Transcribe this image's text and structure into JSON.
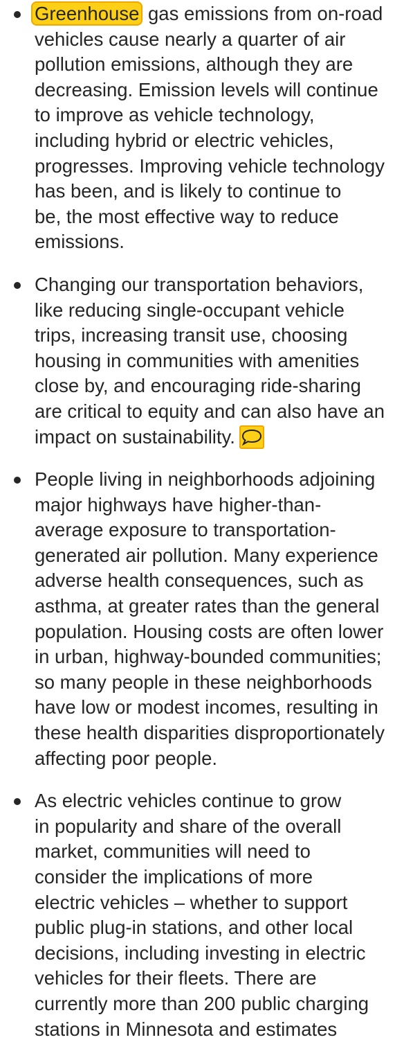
{
  "bullets": [
    {
      "highlight": "Greenhouse",
      "lines": [
        " gas emissions from on-road",
        "vehicles cause nearly a quarter of air",
        "pollution emissions, although they are",
        "decreasing. Emission levels will continue",
        "to improve as vehicle technology,",
        "including hybrid or electric vehicles,",
        "progresses. Improving vehicle technology",
        "has been, and is likely to continue to",
        "be, the most effective way to reduce",
        "emissions."
      ]
    },
    {
      "lines": [
        "Changing our transportation behaviors,",
        "like reducing single-occupant vehicle",
        "trips, increasing transit use, choosing",
        "housing in communities with amenities",
        "close by, and encouraging ride-sharing",
        "are critical to equity and can also have an",
        "impact on sustainability."
      ]
    },
    {
      "lines": [
        "People living in neighborhoods adjoining",
        "major highways have higher-than-",
        "average exposure to transportation-",
        "generated air pollution. Many experience",
        "adverse health consequences, such as",
        "asthma, at greater rates than the general",
        "population. Housing costs are often lower",
        "in urban, highway-bounded communities;",
        "so many people in these neighborhoods",
        "have low or modest incomes, resulting in",
        "these health disparities disproportionately",
        "affecting poor people."
      ]
    },
    {
      "lines": [
        "As electric vehicles continue to grow",
        "in popularity and share of the overall",
        "market, communities will need to",
        "consider the implications of more",
        "electric vehicles – whether to support",
        "public plug-in stations, and other local",
        "decisions, including investing in electric",
        "vehicles for their fleets. There are",
        "currently more than 200 public charging",
        "stations in Minnesota and estimates"
      ]
    }
  ]
}
